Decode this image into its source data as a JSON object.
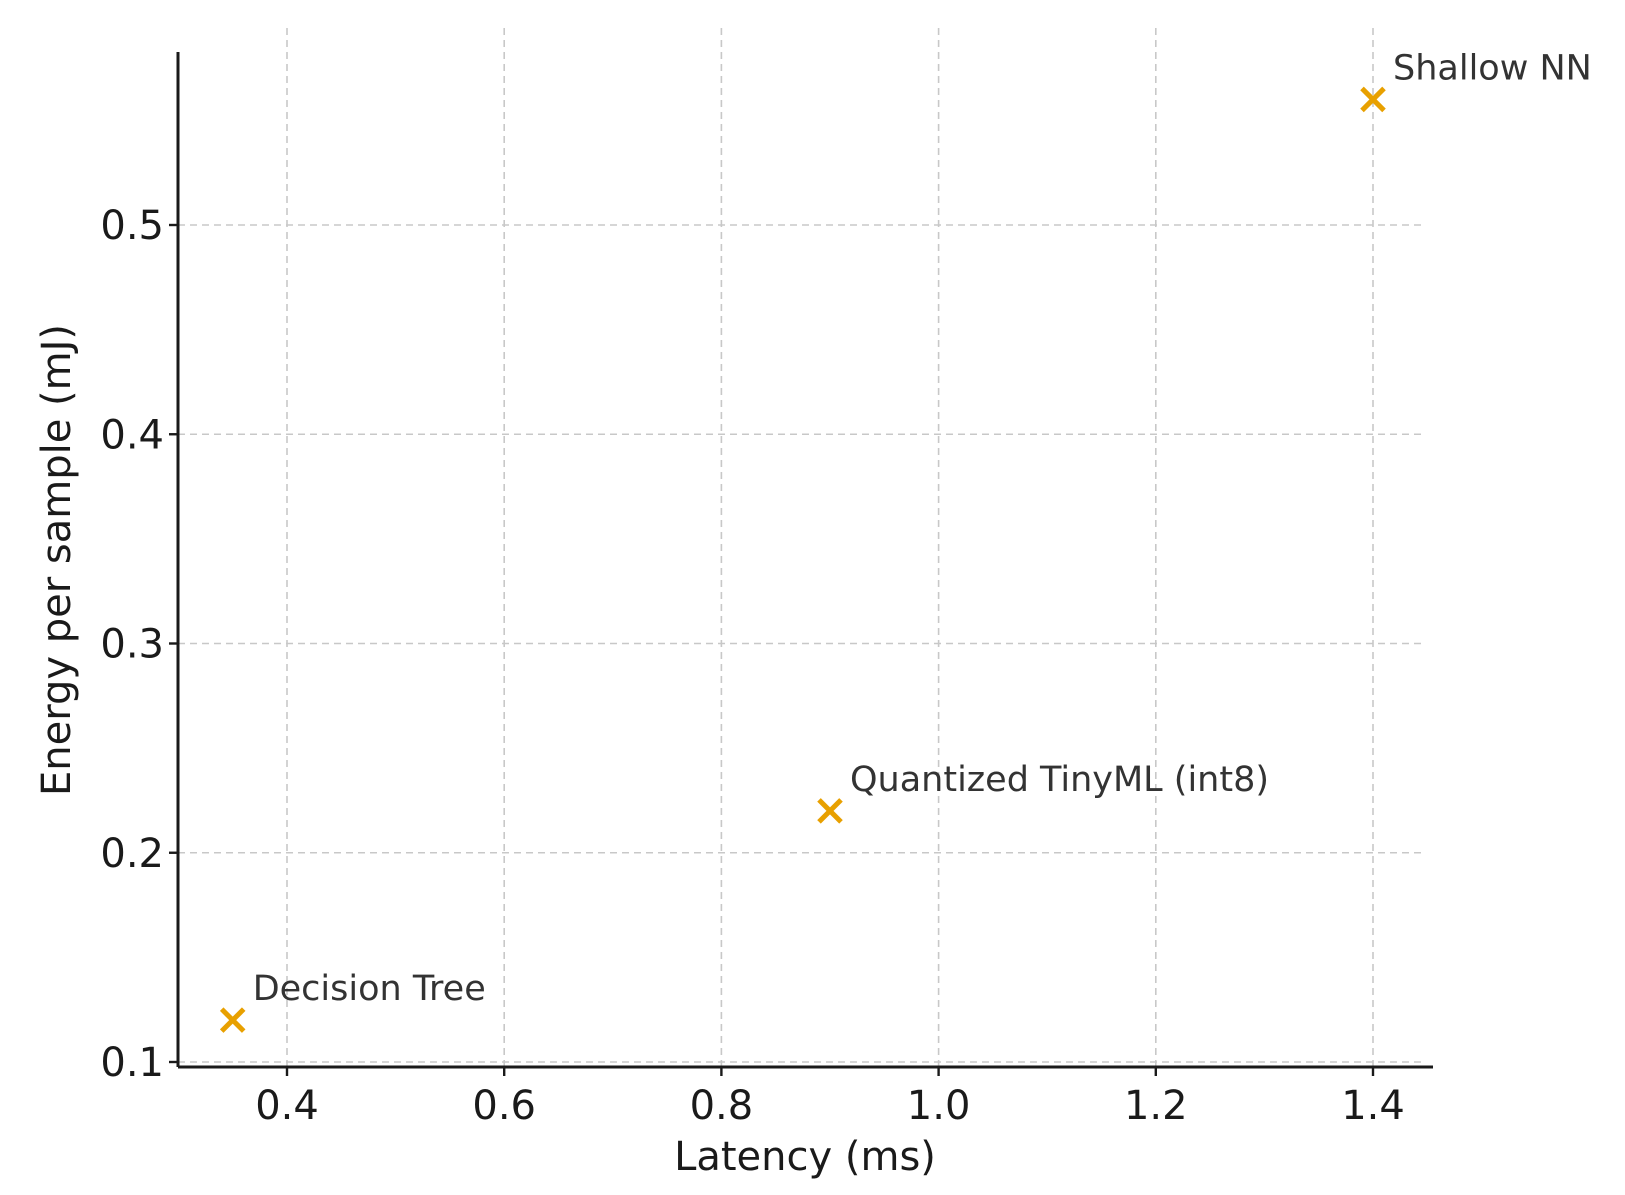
{
  "chart_data": {
    "type": "scatter",
    "title": "",
    "xlabel": "Latency (ms)",
    "ylabel": "Energy per sample (mJ)",
    "xlim": [
      0.3,
      1.45
    ],
    "ylim": [
      0.1,
      0.59
    ],
    "xticks": [
      0.4,
      0.6,
      0.8,
      1.0,
      1.2,
      1.4
    ],
    "xtick_labels": [
      "0.4",
      "0.6",
      "0.8",
      "1.0",
      "1.2",
      "1.4"
    ],
    "yticks": [
      0.1,
      0.2,
      0.3,
      0.4,
      0.5
    ],
    "ytick_labels": [
      "0.1",
      "0.2",
      "0.3",
      "0.4",
      "0.5"
    ],
    "grid": true,
    "marker": "x",
    "marker_color": "#E8A000",
    "points": [
      {
        "label": "Decision Tree",
        "x": 0.35,
        "y": 0.12
      },
      {
        "label": "Quantized TinyML (int8)",
        "x": 0.9,
        "y": 0.22
      },
      {
        "label": "Shallow NN",
        "x": 1.4,
        "y": 0.56
      }
    ]
  }
}
